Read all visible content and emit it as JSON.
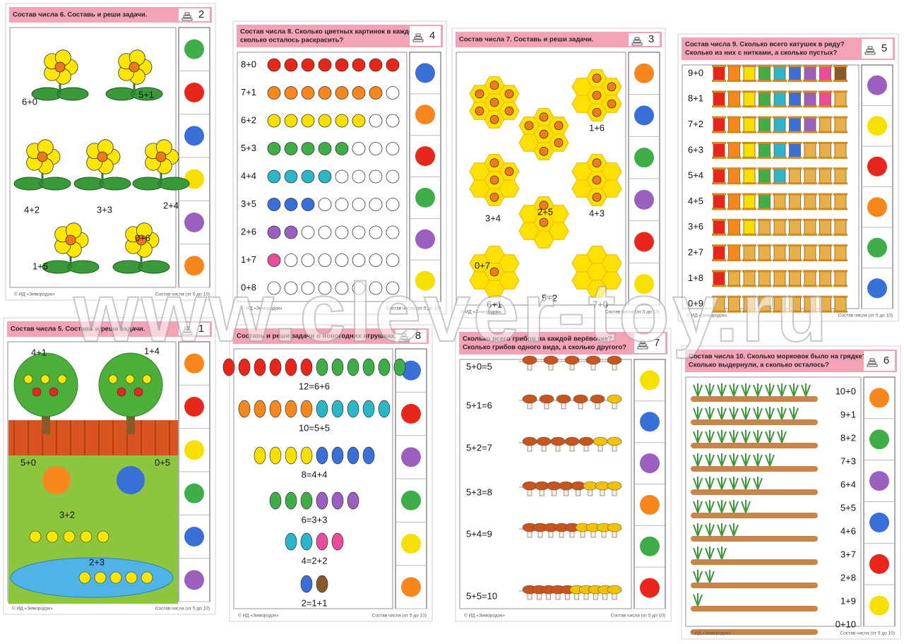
{
  "watermark": "www.clever-toy.ru",
  "cards": [
    {
      "title_lines": [
        "Состав числа 6. Составь и реши задачи."
      ],
      "number": "2",
      "labels": [
        "6+0",
        "5+1",
        "4+2",
        "3+3",
        "2+4",
        "1+5",
        "0+6"
      ],
      "circles": [
        "#3fae49",
        "#e8261c",
        "#3a6fd8",
        "#f7e000",
        "#9b5fc0",
        "#f7861c"
      ],
      "footer_left": "© ИД «Зимородок»",
      "footer_right": "Состав числа (от 5 до 10)"
    },
    {
      "title_lines": [
        "Состав числа 8. Сколько цветных картинок в каждом ряду,",
        "сколько осталось раскрасить?"
      ],
      "number": "4",
      "labels": [
        "8+0",
        "7+1",
        "6+2",
        "5+3",
        "4+4",
        "3+5",
        "2+6",
        "1+7",
        "0+8"
      ],
      "circles": [
        "#3a6fd8",
        "#f7861c",
        "#e8261c",
        "#3fae49",
        "#9b5fc0",
        "#f7e000"
      ],
      "footer_left": "© ИД «Зимородок»",
      "footer_right": "Состав числа (от 5 до 10)"
    },
    {
      "title_lines": [
        "Состав числа 7. Составь и реши задачи."
      ],
      "number": "3",
      "labels": [
        "0+7",
        "1+6",
        "2+5",
        "3+4",
        "4+3",
        "5+2",
        "6+1",
        "7+0"
      ],
      "circles": [
        "#f7861c",
        "#3a6fd8",
        "#3fae49",
        "#9b5fc0",
        "#e8261c",
        "#f7e000"
      ],
      "footer_left": "© ИД «Зимородок»",
      "footer_right": "Состав числа (от 5 до 10)"
    },
    {
      "title_lines": [
        "Состав числа 9. Сколько всего катушек в ряду?",
        "Сколько из них с нитками, а сколько пустых?"
      ],
      "number": "5",
      "labels": [
        "9+0",
        "8+1",
        "7+2",
        "6+3",
        "5+4",
        "4+5",
        "3+6",
        "2+7",
        "1+8",
        "0+9"
      ],
      "circles": [
        "#9b5fc0",
        "#f7e000",
        "#e8261c",
        "#f7861c",
        "#3fae49",
        "#3a6fd8"
      ],
      "footer_left": "© ИД «Зимородок»",
      "footer_right": "Состав числа (от 5 до 10)"
    },
    {
      "title_lines": [
        "Состав числа 5. Составь и реши задачи."
      ],
      "number": "1",
      "labels": [
        "4+1",
        "1+4",
        "5+0",
        "0+5",
        "3+2",
        "2+3"
      ],
      "circles": [
        "#f7861c",
        "#e8261c",
        "#f7e000",
        "#3fae49",
        "#3a6fd8",
        "#9b5fc0"
      ],
      "footer_left": "© ИД «Зимородок»",
      "footer_right": "Состав числа (от 5 до 10)"
    },
    {
      "title_lines": [
        "Составь и реши задачи о новогодних игрушках."
      ],
      "number": "8",
      "labels": [
        "12=6+6",
        "10=5+5",
        "8=4+4",
        "6=3+3",
        "4=2+2",
        "2=1+1"
      ],
      "circles": [
        "#3a6fd8",
        "#e8261c",
        "#9b5fc0",
        "#3fae49",
        "#f7e000",
        "#f7861c"
      ],
      "footer_left": "© ИД «Зимородок»",
      "footer_right": "Состав числа (от 5 до 10)"
    },
    {
      "title_lines": [
        "Сколько всего грибов на каждой верёвочке?",
        "Сколько грибов одного вида, а сколько другого?"
      ],
      "number": "7",
      "labels": [
        "5+0=5",
        "5+1=6",
        "5+2=7",
        "5+3=8",
        "5+4=9",
        "5+5=10"
      ],
      "circles": [
        "#f7e000",
        "#3a6fd8",
        "#9b5fc0",
        "#f7861c",
        "#3fae49",
        "#e8261c"
      ],
      "footer_left": "© ИД «Зимородок»",
      "footer_right": "Состав числа (от 5 до 10)"
    },
    {
      "title_lines": [
        "Состав числа 10. Сколько морковок было на грядке?",
        "Сколько выдернули, а сколько осталось?"
      ],
      "number": "6",
      "labels": [
        "10+0",
        "9+1",
        "8+2",
        "7+3",
        "6+4",
        "5+5",
        "4+6",
        "3+7",
        "2+8",
        "1+9",
        "0+10"
      ],
      "circles": [
        "#f7861c",
        "#3fae49",
        "#9b5fc0",
        "#3a6fd8",
        "#e8261c",
        "#f7e000"
      ],
      "footer_left": "© ИД «Зимородок»",
      "footer_right": "Состав числа (от 5 до 10)"
    }
  ]
}
